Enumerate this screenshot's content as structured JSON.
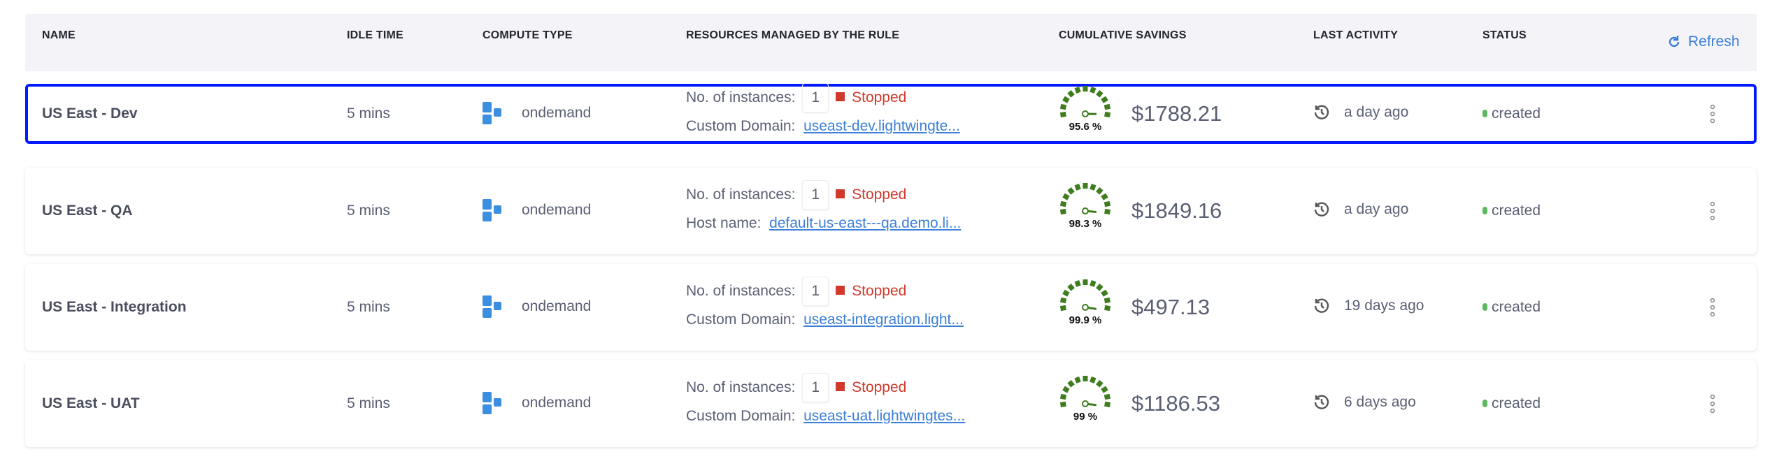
{
  "columns": {
    "name": "NAME",
    "idle": "IDLE TIME",
    "compute": "COMPUTE TYPE",
    "resources": "RESOURCES MANAGED BY THE RULE",
    "savings": "CUMULATIVE SAVINGS",
    "activity": "LAST ACTIVITY",
    "status": "STATUS"
  },
  "refresh_label": "Refresh",
  "colors": {
    "accent": "#3b7fd9",
    "stopped": "#d0392c",
    "gauge": "#3e7d1e",
    "status": "#5cb85c",
    "selection": "#0019ff"
  },
  "rows": [
    {
      "name": "US East - Dev",
      "idle": "5 mins",
      "compute": "ondemand",
      "instances_label": "No. of instances:",
      "instances": "1",
      "state": "Stopped",
      "link_label": "Custom Domain:",
      "link": "useast-dev.lightwingte...",
      "savings_pct": "95.6 %",
      "savings_value": 95.6,
      "amount": "$1788.21",
      "activity": "a day ago",
      "status": "created",
      "selected": true
    },
    {
      "name": "US East - QA",
      "idle": "5 mins",
      "compute": "ondemand",
      "instances_label": "No. of instances:",
      "instances": "1",
      "state": "Stopped",
      "link_label": "Host name:",
      "link": "default-us-east---qa.demo.li...",
      "savings_pct": "98.3 %",
      "savings_value": 98.3,
      "amount": "$1849.16",
      "activity": "a day ago",
      "status": "created"
    },
    {
      "name": "US East - Integration",
      "idle": "5 mins",
      "compute": "ondemand",
      "instances_label": "No. of instances:",
      "instances": "1",
      "state": "Stopped",
      "link_label": "Custom Domain:",
      "link": "useast-integration.light...",
      "savings_pct": "99.9 %",
      "savings_value": 99.9,
      "amount": "$497.13",
      "activity": "19 days ago",
      "status": "created"
    },
    {
      "name": "US East - UAT",
      "idle": "5 mins",
      "compute": "ondemand",
      "instances_label": "No. of instances:",
      "instances": "1",
      "state": "Stopped",
      "link_label": "Custom Domain:",
      "link": "useast-uat.lightwingtes...",
      "savings_pct": "99 %",
      "savings_value": 99,
      "amount": "$1186.53",
      "activity": "6 days ago",
      "status": "created"
    }
  ]
}
